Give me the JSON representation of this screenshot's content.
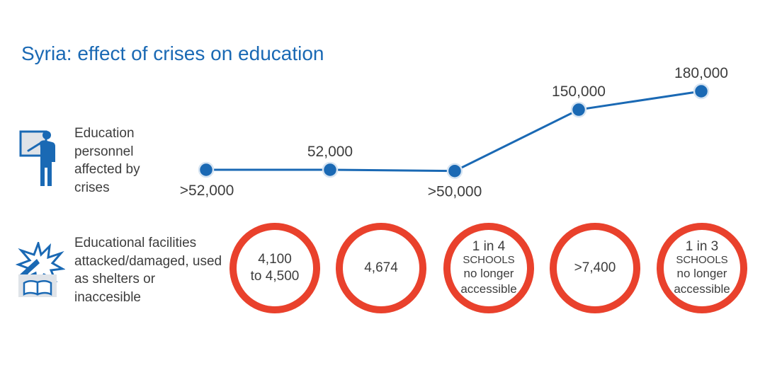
{
  "title": "Syria: effect of crises on education",
  "colors": {
    "title": "#1a69b4",
    "line": "#1a69b4",
    "point": "#1a69b4",
    "circle": "#e9412c",
    "text": "#3d3d3d"
  },
  "rows": {
    "personnel": {
      "label": "Education personnel affected by crises",
      "icon": "teacher-icon"
    },
    "facilities": {
      "label": "Educational facilities attacked/damaged, used as shelters or inaccesible",
      "icon": "school-damage-icon"
    }
  },
  "chart_data": {
    "type": "line",
    "categories": [
      "",
      "",
      "",
      "",
      ""
    ],
    "values": [
      52000,
      52000,
      50000,
      150000,
      180000
    ],
    "data_labels": [
      ">52,000",
      "52,000",
      ">50,000",
      "150,000",
      "180,000"
    ],
    "label_positions": [
      "below",
      "above",
      "below",
      "above",
      "above"
    ],
    "title": "",
    "xlabel": "",
    "ylabel": "",
    "grid": false
  },
  "facility_circles": [
    {
      "type": "value",
      "value": "4,100\nto 4,500"
    },
    {
      "type": "value",
      "value": "4,674"
    },
    {
      "type": "ratio",
      "ratio": "1 in 4",
      "unit": "SCHOOLS",
      "note": "no longer\naccessible"
    },
    {
      "type": "value",
      "value": ">7,400"
    },
    {
      "type": "ratio",
      "ratio": "1 in 3",
      "unit": "SCHOOLS",
      "note": "no longer\naccessible"
    }
  ]
}
